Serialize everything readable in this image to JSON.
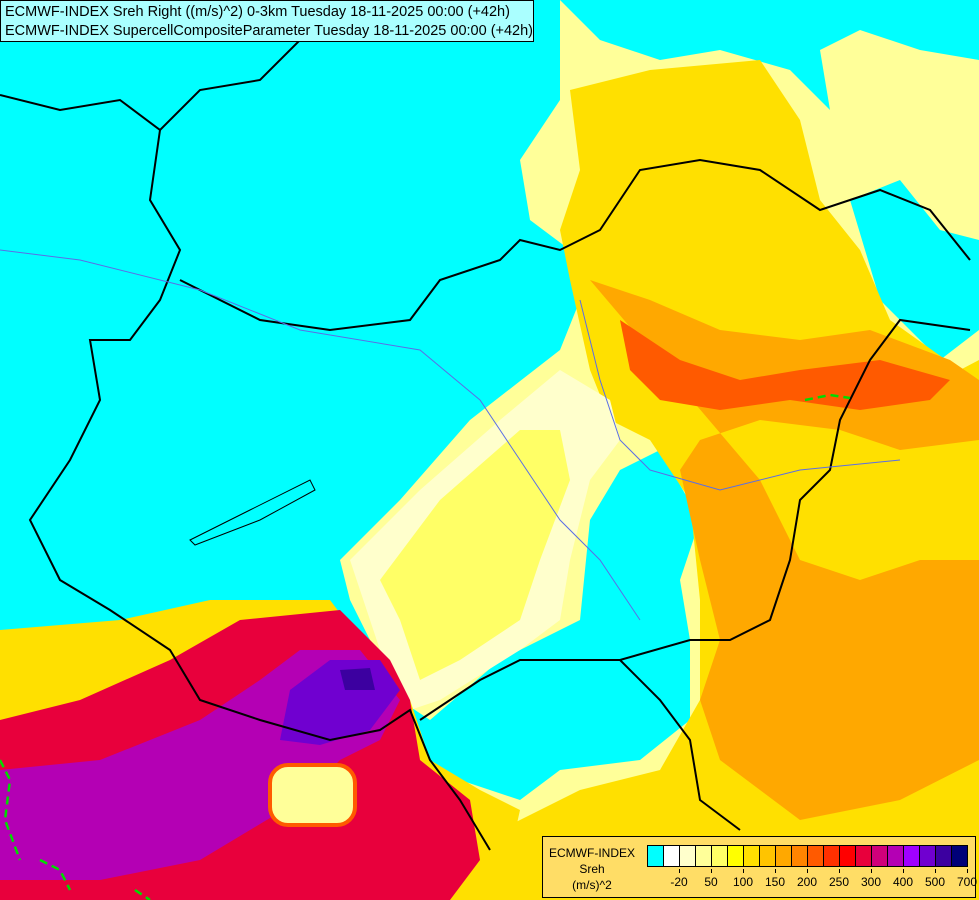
{
  "header": {
    "line1": "ECMWF-INDEX Sreh Right ((m/s)^2) 0-3km Tuesday 18-11-2025 00:00 (+42h)",
    "line2": "ECMWF-INDEX SupercellCompositeParameter Tuesday 18-11-2025 00:00 (+42h)"
  },
  "legend": {
    "title": "ECMWF-INDEX",
    "variable": "Sreh",
    "unit": "(m/s)^2",
    "colors": [
      "#00ffff",
      "#ffffff",
      "#ffffcc",
      "#ffff99",
      "#ffff66",
      "#ffff00",
      "#ffe000",
      "#ffc400",
      "#ffa800",
      "#ff8400",
      "#ff5a00",
      "#ff3000",
      "#ff0000",
      "#e8003c",
      "#d0007a",
      "#b400b4",
      "#a000ff",
      "#7000d0",
      "#3c00a0",
      "#000078"
    ],
    "tick_labels": [
      "-20",
      "50",
      "100",
      "150",
      "200",
      "250",
      "300",
      "400",
      "500",
      "700"
    ]
  },
  "map": {
    "scp_contour_color": "#00dd00",
    "border_color": "#000000",
    "river_color": "#5a6ee6"
  }
}
